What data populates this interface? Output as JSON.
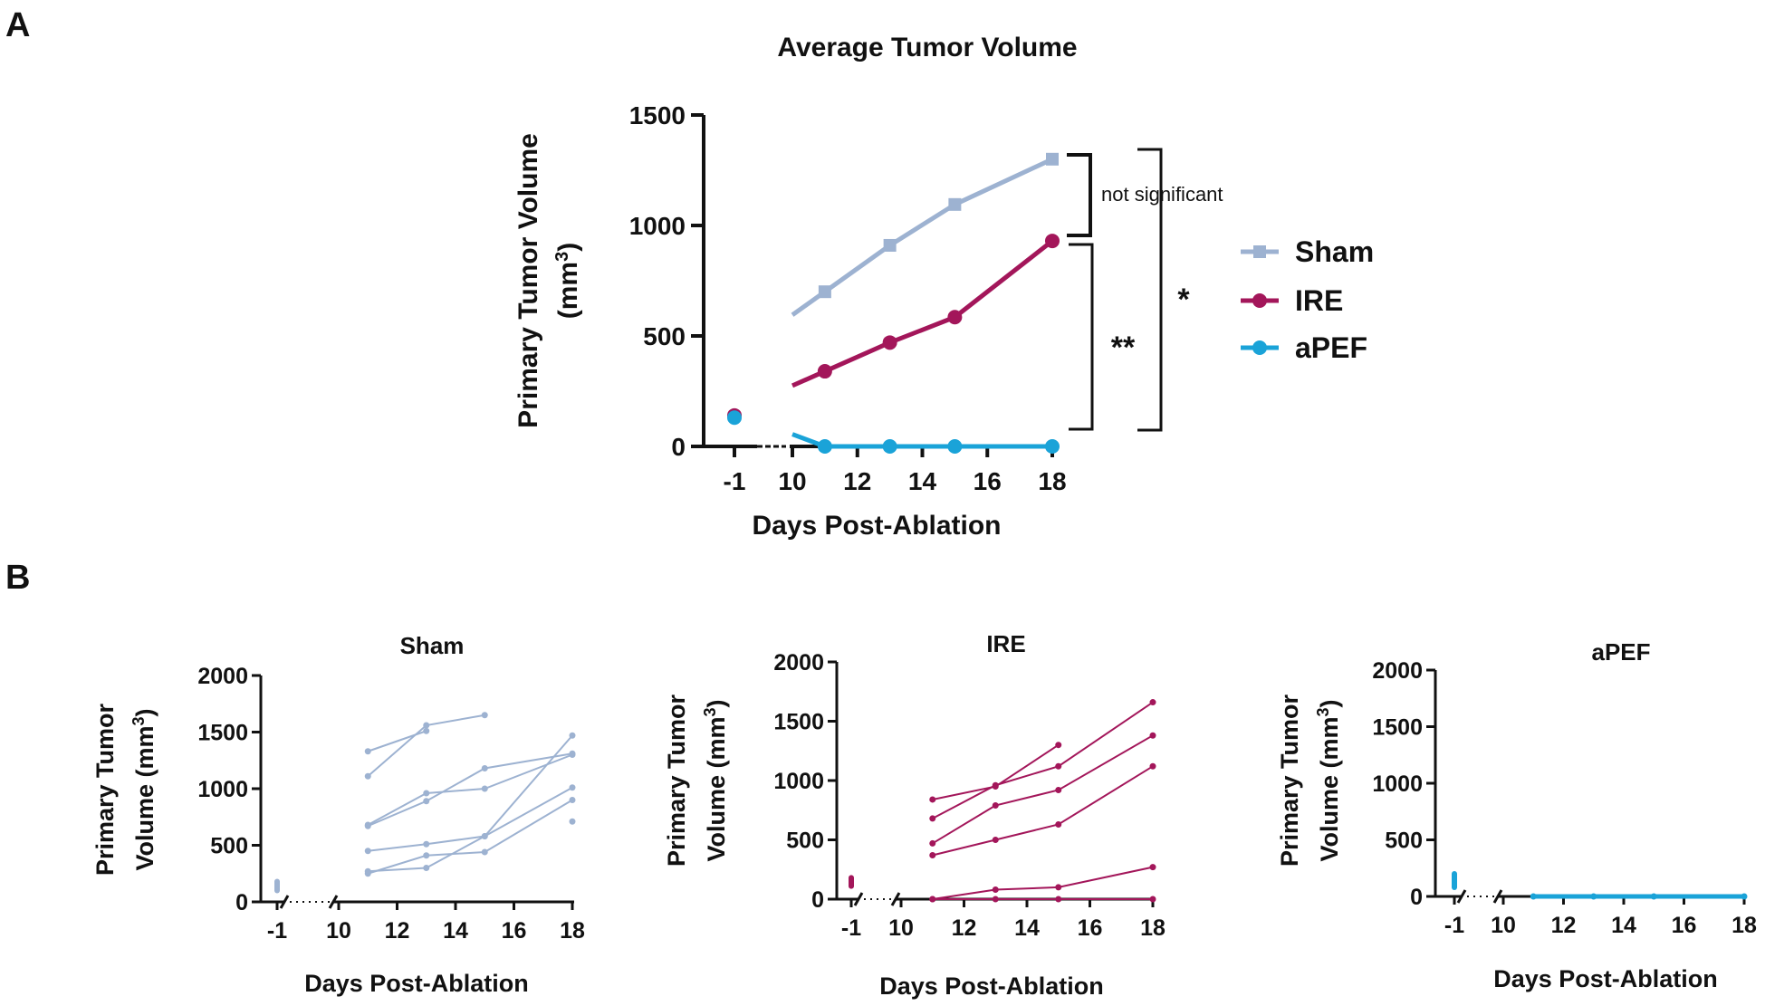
{
  "panels": {
    "a": {
      "label": "A"
    },
    "b": {
      "label": "B"
    }
  },
  "colors": {
    "sham": "#9db2d1",
    "ire": "#a3165a",
    "apef": "#1aa3d8",
    "axis": "#111111"
  },
  "chart_data": [
    {
      "id": "A",
      "type": "line",
      "title": "Average Tumor Volume",
      "xlabel": "Days Post-Ablation",
      "ylabel_line1": "Primary Tumor Volume",
      "ylabel_line2": "(mm",
      "ylabel_sup": "3",
      "ylabel_close": ")",
      "ylim": [
        0,
        1500
      ],
      "yticks": [
        0,
        500,
        1000,
        1500
      ],
      "xticks": [
        "-1",
        "10",
        "12",
        "14",
        "16",
        "18"
      ],
      "x_break_between": [
        -1,
        10
      ],
      "series": [
        {
          "name": "Sham",
          "key": "sham",
          "marker": "square",
          "baseline": 140,
          "x": [
            11,
            13,
            15,
            18
          ],
          "values": [
            700,
            910,
            1095,
            1300
          ]
        },
        {
          "name": "IRE",
          "key": "ire",
          "marker": "circle",
          "baseline": 140,
          "x": [
            11,
            13,
            15,
            18
          ],
          "values": [
            340,
            470,
            585,
            930
          ]
        },
        {
          "name": "aPEF",
          "key": "apef",
          "marker": "circle",
          "baseline": 130,
          "x": [
            11,
            13,
            15,
            18
          ],
          "values": [
            0,
            0,
            0,
            0
          ]
        }
      ],
      "annotations": {
        "ns": "not significant",
        "double_star": "**",
        "single_star": "*"
      }
    },
    {
      "id": "B-Sham",
      "type": "line",
      "title": "Sham",
      "series_key": "sham",
      "xlabel": "Days Post-Ablation",
      "ylabel_line1": "Primary Tumor",
      "ylabel_line2": "Volume (mm",
      "ylabel_sup": "3",
      "ylabel_close": ")",
      "ylim": [
        0,
        2000
      ],
      "yticks": [
        0,
        500,
        1000,
        1500,
        2000
      ],
      "xticks": [
        "-1",
        "10",
        "12",
        "14",
        "16",
        "18"
      ],
      "baseline_range": [
        100,
        180
      ],
      "lines": [
        {
          "x": [
            11,
            13
          ],
          "values": [
            1330,
            1510
          ]
        },
        {
          "x": [
            11,
            13,
            15
          ],
          "values": [
            1110,
            1560,
            1650
          ]
        },
        {
          "x": [
            11,
            13,
            15,
            18
          ],
          "values": [
            680,
            960,
            1000,
            1300
          ]
        },
        {
          "x": [
            11,
            13,
            15,
            18
          ],
          "values": [
            670,
            890,
            1180,
            1310
          ]
        },
        {
          "x": [
            11,
            13,
            15,
            18
          ],
          "values": [
            450,
            510,
            580,
            1470
          ]
        },
        {
          "x": [
            11,
            13,
            15,
            18
          ],
          "values": [
            270,
            300,
            580,
            1010
          ]
        },
        {
          "x": [
            11,
            13,
            15,
            18
          ],
          "values": [
            250,
            410,
            440,
            900
          ]
        },
        {
          "x": [
            18
          ],
          "values": [
            710
          ]
        }
      ]
    },
    {
      "id": "B-IRE",
      "type": "line",
      "title": "IRE",
      "series_key": "ire",
      "xlabel": "Days Post-Ablation",
      "ylabel_line1": "Primary Tumor",
      "ylabel_line2": "Volume (mm",
      "ylabel_sup": "3",
      "ylabel_close": ")",
      "ylim": [
        0,
        2000
      ],
      "yticks": [
        0,
        500,
        1000,
        1500,
        2000
      ],
      "xticks": [
        "-1",
        "10",
        "12",
        "14",
        "16",
        "18"
      ],
      "baseline_range": [
        110,
        180
      ],
      "lines": [
        {
          "x": [
            11,
            13,
            15
          ],
          "values": [
            840,
            950,
            1300
          ]
        },
        {
          "x": [
            11,
            13,
            15,
            18
          ],
          "values": [
            680,
            960,
            1120,
            1660
          ]
        },
        {
          "x": [
            11,
            13,
            15,
            18
          ],
          "values": [
            470,
            790,
            920,
            1380
          ]
        },
        {
          "x": [
            11,
            13,
            15,
            18
          ],
          "values": [
            370,
            500,
            630,
            1120
          ]
        },
        {
          "x": [
            11,
            13,
            15,
            18
          ],
          "values": [
            0,
            80,
            100,
            270
          ]
        },
        {
          "x": [
            11,
            13,
            15,
            18
          ],
          "values": [
            0,
            0,
            0,
            0
          ]
        }
      ]
    },
    {
      "id": "B-aPEF",
      "type": "line",
      "title": "aPEF",
      "series_key": "apef",
      "xlabel": "Days Post-Ablation",
      "ylabel_line1": "Primary Tumor",
      "ylabel_line2": "Volume (mm",
      "ylabel_sup": "3",
      "ylabel_close": ")",
      "ylim": [
        0,
        2000
      ],
      "yticks": [
        0,
        500,
        1000,
        1500,
        2000
      ],
      "xticks": [
        "-1",
        "10",
        "12",
        "14",
        "16",
        "18"
      ],
      "baseline_range": [
        80,
        200
      ],
      "lines": [
        {
          "x": [
            11,
            13,
            15,
            18
          ],
          "values": [
            0,
            0,
            0,
            0
          ]
        }
      ]
    }
  ]
}
